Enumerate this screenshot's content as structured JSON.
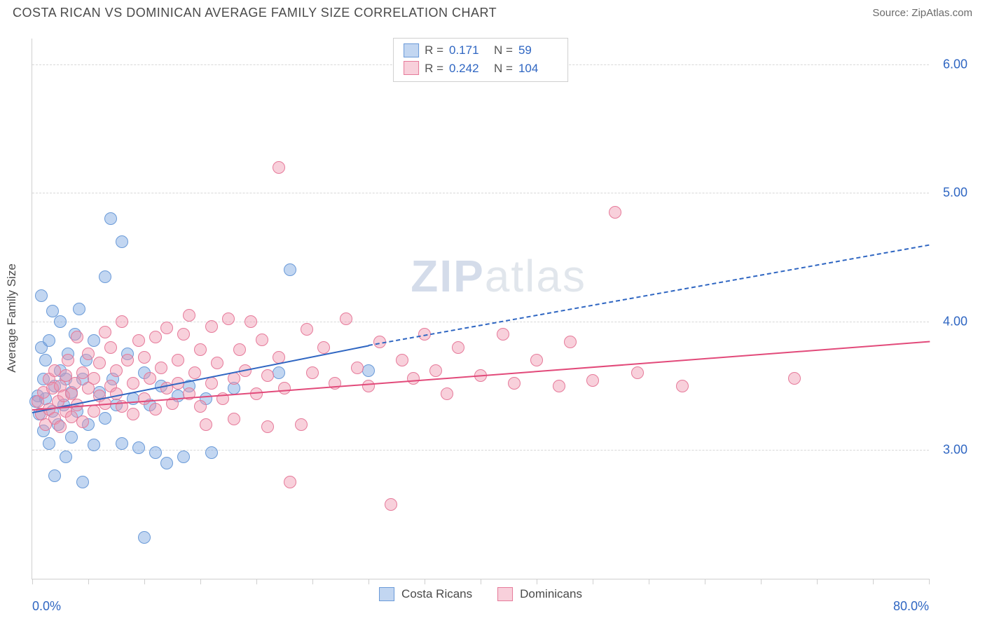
{
  "header": {
    "title": "COSTA RICAN VS DOMINICAN AVERAGE FAMILY SIZE CORRELATION CHART",
    "source_prefix": "Source: ",
    "source_link": "ZipAtlas.com"
  },
  "watermark": {
    "zip": "ZIP",
    "rest": "atlas"
  },
  "chart": {
    "type": "scatter",
    "xlim": [
      0,
      80
    ],
    "ylim": [
      2.0,
      6.2
    ],
    "xticks_pct": [
      0,
      5,
      10,
      15,
      20,
      25,
      30,
      35,
      40,
      45,
      50,
      55,
      60,
      65,
      70,
      75,
      80
    ],
    "xtick_labels": {
      "0": "0.0%",
      "80": "80.0%"
    },
    "yticks": [
      3.0,
      4.0,
      5.0,
      6.0
    ],
    "ylabel": "Average Family Size",
    "grid_color": "#d8d8d8",
    "axis_color": "#cfcfcf",
    "background": "#ffffff",
    "label_color": "#2f66c2",
    "marker_radius": 9,
    "series": [
      {
        "name": "Costa Ricans",
        "fill": "rgba(120,165,225,0.45)",
        "stroke": "#6a9ad8",
        "line_color": "#2f66c2",
        "R": "0.171",
        "N": "59",
        "trend": {
          "x1": 0,
          "y1": 3.3,
          "x2": 30,
          "y2": 3.82,
          "x2_dash": 80,
          "y2_dash": 4.6
        },
        "points": [
          [
            0.3,
            3.38
          ],
          [
            0.5,
            3.42
          ],
          [
            0.6,
            3.28
          ],
          [
            0.8,
            3.8
          ],
          [
            0.8,
            4.2
          ],
          [
            1.0,
            3.55
          ],
          [
            1.0,
            3.15
          ],
          [
            1.2,
            3.4
          ],
          [
            1.2,
            3.7
          ],
          [
            1.5,
            3.05
          ],
          [
            1.5,
            3.85
          ],
          [
            1.8,
            3.3
          ],
          [
            1.8,
            4.08
          ],
          [
            2.0,
            3.5
          ],
          [
            2.0,
            2.8
          ],
          [
            2.3,
            3.2
          ],
          [
            2.5,
            3.62
          ],
          [
            2.5,
            4.0
          ],
          [
            2.8,
            3.35
          ],
          [
            3.0,
            3.55
          ],
          [
            3.0,
            2.95
          ],
          [
            3.2,
            3.75
          ],
          [
            3.5,
            3.1
          ],
          [
            3.5,
            3.45
          ],
          [
            3.8,
            3.9
          ],
          [
            4.0,
            3.3
          ],
          [
            4.2,
            4.1
          ],
          [
            4.5,
            3.55
          ],
          [
            4.5,
            2.75
          ],
          [
            4.8,
            3.7
          ],
          [
            5.0,
            3.2
          ],
          [
            5.5,
            3.85
          ],
          [
            5.5,
            3.04
          ],
          [
            6.0,
            3.45
          ],
          [
            6.5,
            4.35
          ],
          [
            6.5,
            3.25
          ],
          [
            7.0,
            4.8
          ],
          [
            7.2,
            3.55
          ],
          [
            7.5,
            3.35
          ],
          [
            8.0,
            4.62
          ],
          [
            8.0,
            3.05
          ],
          [
            8.5,
            3.75
          ],
          [
            9.0,
            3.4
          ],
          [
            9.5,
            3.02
          ],
          [
            10.0,
            3.6
          ],
          [
            10.0,
            2.32
          ],
          [
            10.5,
            3.35
          ],
          [
            11.0,
            2.98
          ],
          [
            11.5,
            3.5
          ],
          [
            12.0,
            2.9
          ],
          [
            13.0,
            3.42
          ],
          [
            13.5,
            2.95
          ],
          [
            14.0,
            3.5
          ],
          [
            15.5,
            3.4
          ],
          [
            16.0,
            2.98
          ],
          [
            18.0,
            3.48
          ],
          [
            23.0,
            4.4
          ],
          [
            22.0,
            3.6
          ],
          [
            30.0,
            3.62
          ]
        ]
      },
      {
        "name": "Dominicans",
        "fill": "rgba(240,150,175,0.45)",
        "stroke": "#e67a9a",
        "line_color": "#e24a7a",
        "R": "0.242",
        "N": "104",
        "trend": {
          "x1": 0,
          "y1": 3.32,
          "x2": 80,
          "y2": 3.85
        },
        "points": [
          [
            0.5,
            3.38
          ],
          [
            0.8,
            3.28
          ],
          [
            1.0,
            3.45
          ],
          [
            1.2,
            3.2
          ],
          [
            1.5,
            3.55
          ],
          [
            1.5,
            3.32
          ],
          [
            1.8,
            3.48
          ],
          [
            2.0,
            3.25
          ],
          [
            2.0,
            3.62
          ],
          [
            2.3,
            3.38
          ],
          [
            2.5,
            3.5
          ],
          [
            2.5,
            3.18
          ],
          [
            2.8,
            3.42
          ],
          [
            3.0,
            3.3
          ],
          [
            3.0,
            3.58
          ],
          [
            3.2,
            3.7
          ],
          [
            3.5,
            3.44
          ],
          [
            3.5,
            3.26
          ],
          [
            3.8,
            3.52
          ],
          [
            4.0,
            3.88
          ],
          [
            4.0,
            3.35
          ],
          [
            4.5,
            3.6
          ],
          [
            4.5,
            3.22
          ],
          [
            5.0,
            3.48
          ],
          [
            5.0,
            3.75
          ],
          [
            5.5,
            3.56
          ],
          [
            5.5,
            3.3
          ],
          [
            6.0,
            3.42
          ],
          [
            6.0,
            3.68
          ],
          [
            6.5,
            3.92
          ],
          [
            6.5,
            3.36
          ],
          [
            7.0,
            3.5
          ],
          [
            7.0,
            3.8
          ],
          [
            7.5,
            3.44
          ],
          [
            7.5,
            3.62
          ],
          [
            8.0,
            4.0
          ],
          [
            8.0,
            3.34
          ],
          [
            8.5,
            3.7
          ],
          [
            9.0,
            3.52
          ],
          [
            9.0,
            3.28
          ],
          [
            9.5,
            3.85
          ],
          [
            10.0,
            3.4
          ],
          [
            10.0,
            3.72
          ],
          [
            10.5,
            3.56
          ],
          [
            11.0,
            3.88
          ],
          [
            11.0,
            3.32
          ],
          [
            11.5,
            3.64
          ],
          [
            12.0,
            3.48
          ],
          [
            12.0,
            3.95
          ],
          [
            12.5,
            3.36
          ],
          [
            13.0,
            3.7
          ],
          [
            13.0,
            3.52
          ],
          [
            13.5,
            3.9
          ],
          [
            14.0,
            3.44
          ],
          [
            14.0,
            4.05
          ],
          [
            14.5,
            3.6
          ],
          [
            15.0,
            3.78
          ],
          [
            15.0,
            3.34
          ],
          [
            15.5,
            3.2
          ],
          [
            16.0,
            3.96
          ],
          [
            16.0,
            3.52
          ],
          [
            16.5,
            3.68
          ],
          [
            17.0,
            3.4
          ],
          [
            17.5,
            4.02
          ],
          [
            18.0,
            3.56
          ],
          [
            18.0,
            3.24
          ],
          [
            18.5,
            3.78
          ],
          [
            19.0,
            3.62
          ],
          [
            19.5,
            4.0
          ],
          [
            20.0,
            3.44
          ],
          [
            20.5,
            3.86
          ],
          [
            21.0,
            3.58
          ],
          [
            21.0,
            3.18
          ],
          [
            22.0,
            3.72
          ],
          [
            22.5,
            3.48
          ],
          [
            24.0,
            3.2
          ],
          [
            22.0,
            5.2
          ],
          [
            23.0,
            2.75
          ],
          [
            24.5,
            3.94
          ],
          [
            25.0,
            3.6
          ],
          [
            26.0,
            3.8
          ],
          [
            27.0,
            3.52
          ],
          [
            28.0,
            4.02
          ],
          [
            29.0,
            3.64
          ],
          [
            30.0,
            3.5
          ],
          [
            31.0,
            3.84
          ],
          [
            32.0,
            2.58
          ],
          [
            33.0,
            3.7
          ],
          [
            34.0,
            3.56
          ],
          [
            35.0,
            3.9
          ],
          [
            36.0,
            3.62
          ],
          [
            37.0,
            3.44
          ],
          [
            38.0,
            3.8
          ],
          [
            40.0,
            3.58
          ],
          [
            42.0,
            3.9
          ],
          [
            43.0,
            3.52
          ],
          [
            45.0,
            3.7
          ],
          [
            47.0,
            3.5
          ],
          [
            48.0,
            3.84
          ],
          [
            50.0,
            3.54
          ],
          [
            52.0,
            4.85
          ],
          [
            54.0,
            3.6
          ],
          [
            58.0,
            3.5
          ],
          [
            68.0,
            3.56
          ]
        ]
      }
    ]
  },
  "legend_top": [
    {
      "series_idx": 0,
      "R_label": "R =",
      "N_label": "N ="
    },
    {
      "series_idx": 1,
      "R_label": "R =",
      "N_label": "N ="
    }
  ]
}
